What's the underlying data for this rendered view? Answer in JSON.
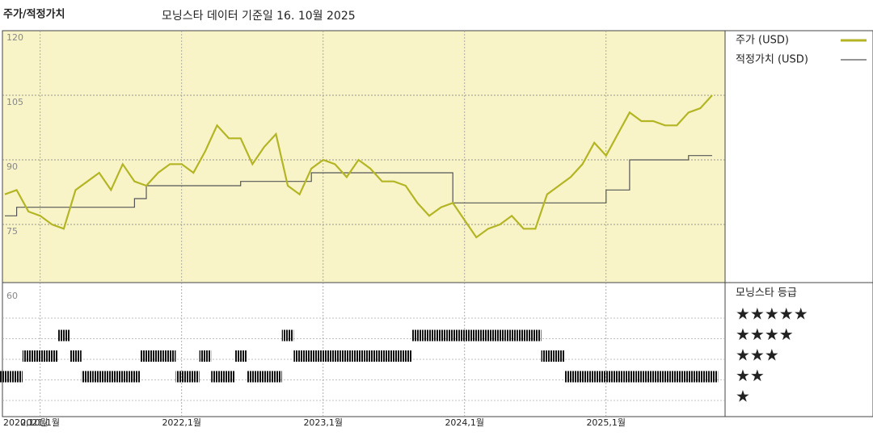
{
  "chart_data": {
    "type": "line",
    "label": "주가/적정가치",
    "title": "모닝스타 데이터 기준일 16. 10월 2025",
    "x": [
      "2020-10",
      "2020-11",
      "2020-12",
      "2021-01",
      "2021-02",
      "2021-03",
      "2021-04",
      "2021-05",
      "2021-06",
      "2021-07",
      "2021-08",
      "2021-09",
      "2021-10",
      "2021-11",
      "2021-12",
      "2022-01",
      "2022-02",
      "2022-03",
      "2022-04",
      "2022-05",
      "2022-06",
      "2022-07",
      "2022-08",
      "2022-09",
      "2022-10",
      "2022-11",
      "2022-12",
      "2023-01",
      "2023-02",
      "2023-03",
      "2023-04",
      "2023-05",
      "2023-06",
      "2023-07",
      "2023-08",
      "2023-09",
      "2023-10",
      "2023-11",
      "2023-12",
      "2024-01",
      "2024-02",
      "2024-03",
      "2024-04",
      "2024-05",
      "2024-06",
      "2024-07",
      "2024-08",
      "2024-09",
      "2024-10",
      "2024-11",
      "2024-12",
      "2025-01",
      "2025-02",
      "2025-03",
      "2025-04",
      "2025-05",
      "2025-06",
      "2025-07",
      "2025-08",
      "2025-09",
      "2025-10"
    ],
    "series": [
      {
        "name": "주가 (USD)",
        "color": "#b3b524",
        "values": [
          82,
          83,
          78,
          77,
          75,
          74,
          83,
          85,
          87,
          83,
          89,
          85,
          84,
          87,
          89,
          89,
          87,
          92,
          98,
          95,
          95,
          89,
          93,
          96,
          84,
          82,
          88,
          90,
          89,
          86,
          90,
          88,
          85,
          85,
          84,
          80,
          77,
          79,
          80,
          76,
          72,
          74,
          75,
          77,
          74,
          74,
          82,
          84,
          86,
          89,
          94,
          91,
          96,
          101,
          99,
          99,
          98,
          98,
          101,
          102,
          105
        ]
      },
      {
        "name": "적정가치 (USD)",
        "color": "#555555",
        "values": [
          77,
          79,
          79,
          79,
          79,
          79,
          79,
          79,
          79,
          79,
          79,
          81,
          84,
          84,
          84,
          84,
          84,
          84,
          84,
          84,
          85,
          85,
          85,
          85,
          85,
          85,
          87,
          87,
          87,
          87,
          87,
          87,
          87,
          87,
          87,
          87,
          87,
          87,
          80,
          80,
          80,
          80,
          80,
          80,
          80,
          80,
          80,
          80,
          80,
          80,
          80,
          83,
          83,
          90,
          90,
          90,
          90,
          90,
          91,
          91,
          91
        ]
      }
    ],
    "rating": {
      "name": "모닝스타 등급",
      "labels": [
        "★★★★★",
        "★★★★",
        "★★★",
        "★★",
        "★"
      ],
      "levels": [
        5,
        4,
        3,
        2,
        1
      ],
      "values": [
        2,
        2,
        3,
        3,
        3,
        4,
        3,
        2,
        2,
        2,
        2,
        2,
        3,
        3,
        3,
        2,
        2,
        3,
        2,
        2,
        3,
        2,
        2,
        2,
        4,
        3,
        3,
        3,
        3,
        3,
        3,
        3,
        3,
        3,
        3,
        4,
        4,
        4,
        4,
        4,
        4,
        4,
        4,
        4,
        4,
        4,
        3,
        3,
        2,
        2,
        2,
        2,
        2,
        2,
        2,
        2,
        2,
        2,
        2,
        2,
        2
      ]
    },
    "xlim": [
      "2020-10",
      "2025-10"
    ],
    "xticks": [
      {
        "value": "2020-10",
        "label": "2020,10월"
      },
      {
        "value": "2021-01",
        "label": "2021,1월"
      },
      {
        "value": "2022-01",
        "label": "2022,1월"
      },
      {
        "value": "2023-01",
        "label": "2023,1월"
      },
      {
        "value": "2024-01",
        "label": "2024,1월"
      },
      {
        "value": "2025-01",
        "label": "2025,1월"
      }
    ],
    "ylim": [
      60,
      120
    ],
    "yticks": [
      60,
      75,
      90,
      105,
      120
    ],
    "grid": true
  }
}
